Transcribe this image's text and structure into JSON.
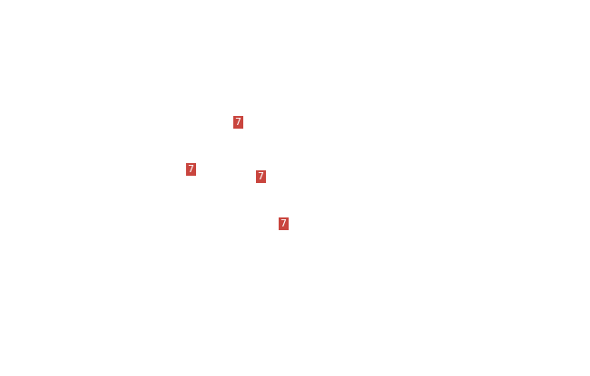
{
  "tile_color": "#c9453e",
  "tiles": [
    {
      "label": "7"
    },
    {
      "label": "7"
    },
    {
      "label": "7"
    },
    {
      "label": "7"
    }
  ]
}
